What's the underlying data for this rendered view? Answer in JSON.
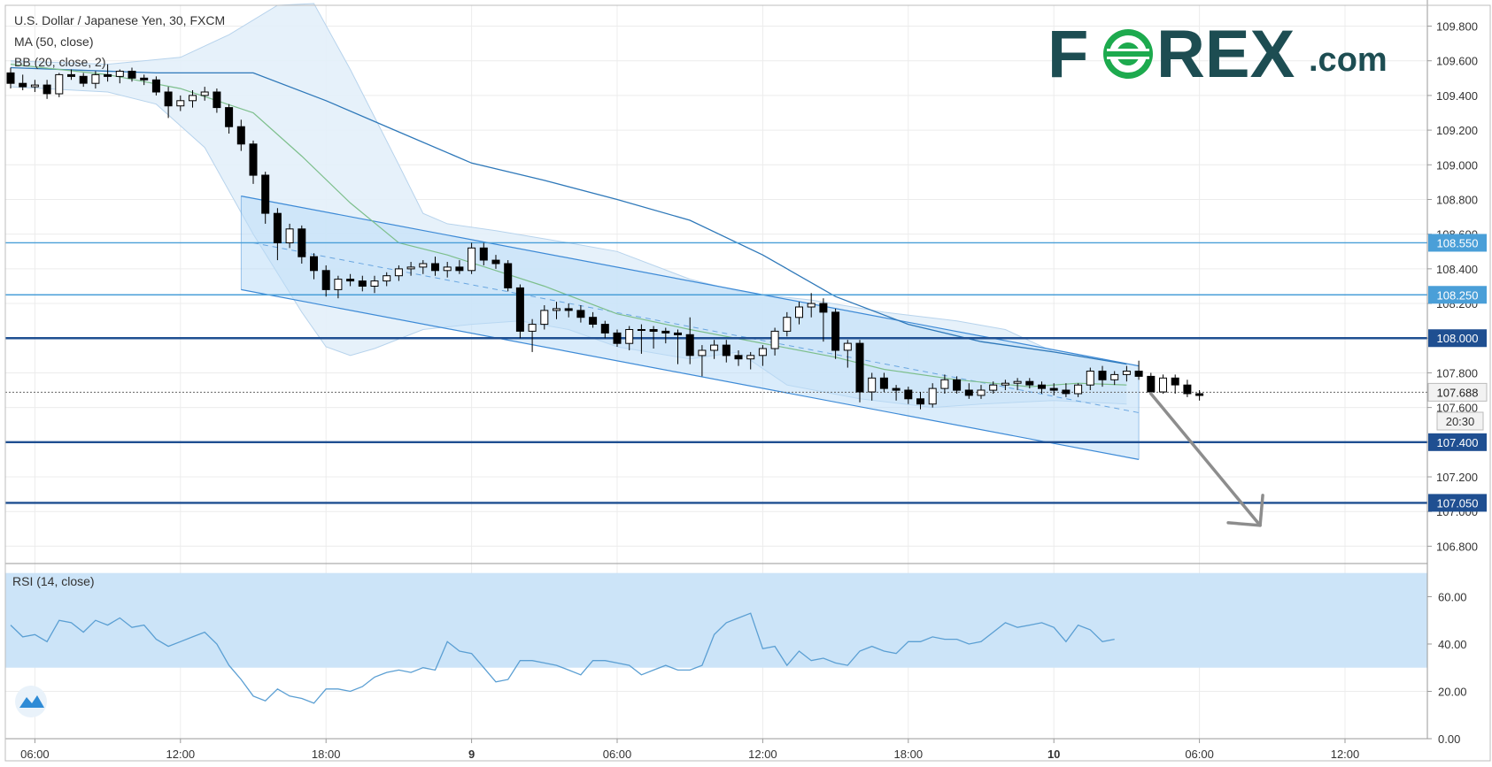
{
  "header": {
    "symbol_line": "U.S. Dollar / Japanese Yen, 30, FXCM",
    "ma_label": "MA (50, close)",
    "bb_label": "BB (20, close, 2)"
  },
  "logo": {
    "brand": "FOREX.com",
    "text_before": "F",
    "text_after": "REX",
    "suffix": ".com",
    "color": "#1d4d52",
    "accent": "#1daa4e"
  },
  "rsi_panel": {
    "label": "RSI (14, close)"
  },
  "badges": {
    "countdown": "20:30"
  },
  "colors": {
    "bg": "#ffffff",
    "grid": "#ececec",
    "channel_fill": "#bcdcf7",
    "channel_line": "#3d8ad6",
    "bb_fill": "#e3effa",
    "bb_line": "#b7d3ec",
    "ma_line": "#2e78b9",
    "bb_mid": "#7dbf8c",
    "rsi_fill": "#cce4f8",
    "rsi_line": "#5b9fd3",
    "hline": "#1f4f91",
    "hline_light": "#4a9fd8",
    "arrow": "#8d8d8d",
    "candle_up": "#ffffff",
    "candle_down": "#000000"
  },
  "chart_data": [
    {
      "type": "candlestick",
      "title": "U.S. Dollar / Japanese Yen, 30, FXCM",
      "ylim": [
        106.7,
        109.92
      ],
      "y_ticks": [
        "106.800",
        "107.000",
        "107.200",
        "107.400",
        "107.600",
        "107.800",
        "108.000",
        "108.200",
        "108.400",
        "108.600",
        "108.800",
        "109.000",
        "109.200",
        "109.400",
        "109.600",
        "109.800"
      ],
      "x_ticks": [
        "06:00",
        "12:00",
        "18:00",
        "9",
        "06:00",
        "12:00",
        "18:00",
        "10",
        "06:00",
        "12:00"
      ],
      "x_tick_index": [
        2,
        14,
        26,
        38,
        50,
        62,
        74,
        86,
        98,
        110
      ],
      "candles": [
        [
          109.53,
          109.56,
          109.44,
          109.47
        ],
        [
          109.47,
          109.52,
          109.43,
          109.45
        ],
        [
          109.45,
          109.49,
          109.42,
          109.46
        ],
        [
          109.46,
          109.49,
          109.38,
          109.41
        ],
        [
          109.41,
          109.53,
          109.39,
          109.52
        ],
        [
          109.52,
          109.55,
          109.49,
          109.51
        ],
        [
          109.51,
          109.53,
          109.45,
          109.47
        ],
        [
          109.47,
          109.54,
          109.44,
          109.52
        ],
        [
          109.52,
          109.58,
          109.48,
          109.51
        ],
        [
          109.51,
          109.55,
          109.47,
          109.54
        ],
        [
          109.54,
          109.56,
          109.48,
          109.5
        ],
        [
          109.5,
          109.52,
          109.46,
          109.49
        ],
        [
          109.49,
          109.51,
          109.4,
          109.42
        ],
        [
          109.42,
          109.45,
          109.27,
          109.34
        ],
        [
          109.34,
          109.4,
          109.31,
          109.37
        ],
        [
          109.37,
          109.43,
          109.33,
          109.4
        ],
        [
          109.4,
          109.45,
          109.37,
          109.42
        ],
        [
          109.42,
          109.44,
          109.3,
          109.33
        ],
        [
          109.33,
          109.35,
          109.18,
          109.22
        ],
        [
          109.22,
          109.26,
          109.08,
          109.12
        ],
        [
          109.12,
          109.14,
          108.89,
          108.94
        ],
        [
          108.94,
          108.96,
          108.66,
          108.72
        ],
        [
          108.72,
          108.75,
          108.45,
          108.55
        ],
        [
          108.55,
          108.66,
          108.52,
          108.63
        ],
        [
          108.63,
          108.65,
          108.43,
          108.47
        ],
        [
          108.47,
          108.49,
          108.34,
          108.39
        ],
        [
          108.39,
          108.42,
          108.24,
          108.28
        ],
        [
          108.28,
          108.36,
          108.23,
          108.34
        ],
        [
          108.34,
          108.37,
          108.3,
          108.33
        ],
        [
          108.33,
          108.36,
          108.27,
          108.3
        ],
        [
          108.3,
          108.36,
          108.26,
          108.33
        ],
        [
          108.33,
          108.38,
          108.3,
          108.36
        ],
        [
          108.36,
          108.42,
          108.33,
          108.4
        ],
        [
          108.4,
          108.44,
          108.36,
          108.41
        ],
        [
          108.41,
          108.45,
          108.37,
          108.43
        ],
        [
          108.43,
          108.47,
          108.36,
          108.39
        ],
        [
          108.39,
          108.44,
          108.35,
          108.41
        ],
        [
          108.41,
          108.45,
          108.37,
          108.39
        ],
        [
          108.39,
          108.55,
          108.37,
          108.52
        ],
        [
          108.52,
          108.55,
          108.42,
          108.45
        ],
        [
          108.45,
          108.48,
          108.4,
          108.43
        ],
        [
          108.43,
          108.45,
          108.27,
          108.29
        ],
        [
          108.29,
          108.31,
          108.0,
          108.04
        ],
        [
          108.04,
          108.11,
          107.92,
          108.08
        ],
        [
          108.08,
          108.19,
          108.05,
          108.16
        ],
        [
          108.16,
          108.21,
          108.11,
          108.17
        ],
        [
          108.17,
          108.2,
          108.12,
          108.16
        ],
        [
          108.16,
          108.19,
          108.09,
          108.12
        ],
        [
          108.12,
          108.15,
          108.06,
          108.08
        ],
        [
          108.08,
          108.1,
          108.0,
          108.03
        ],
        [
          108.03,
          108.05,
          107.95,
          107.97
        ],
        [
          107.97,
          108.07,
          107.93,
          108.05
        ],
        [
          108.05,
          108.08,
          107.91,
          108.05
        ],
        [
          108.05,
          108.07,
          107.94,
          108.04
        ],
        [
          108.04,
          108.06,
          107.97,
          108.03
        ],
        [
          108.03,
          108.05,
          107.85,
          108.02
        ],
        [
          108.02,
          108.12,
          107.85,
          107.9
        ],
        [
          107.9,
          107.96,
          107.78,
          107.93
        ],
        [
          107.93,
          107.99,
          107.88,
          107.96
        ],
        [
          107.96,
          107.99,
          107.86,
          107.9
        ],
        [
          107.9,
          107.93,
          107.84,
          107.88
        ],
        [
          107.88,
          107.92,
          107.82,
          107.9
        ],
        [
          107.9,
          107.96,
          107.84,
          107.94
        ],
        [
          107.94,
          108.06,
          107.9,
          108.04
        ],
        [
          108.04,
          108.15,
          108.01,
          108.12
        ],
        [
          108.12,
          108.21,
          108.08,
          108.18
        ],
        [
          108.18,
          108.26,
          108.12,
          108.2
        ],
        [
          108.2,
          108.23,
          107.98,
          108.15
        ],
        [
          108.15,
          108.17,
          107.88,
          107.93
        ],
        [
          107.93,
          107.99,
          107.83,
          107.97
        ],
        [
          107.97,
          107.99,
          107.63,
          107.69
        ],
        [
          107.69,
          107.8,
          107.64,
          107.77
        ],
        [
          107.77,
          107.8,
          107.69,
          107.71
        ],
        [
          107.71,
          107.73,
          107.64,
          107.7
        ],
        [
          107.7,
          107.72,
          107.62,
          107.65
        ],
        [
          107.65,
          107.69,
          107.59,
          107.62
        ],
        [
          107.62,
          107.74,
          107.6,
          107.71
        ],
        [
          107.71,
          107.79,
          107.68,
          107.76
        ],
        [
          107.76,
          107.78,
          107.68,
          107.7
        ],
        [
          107.7,
          107.74,
          107.65,
          107.67
        ],
        [
          107.67,
          107.73,
          107.65,
          107.7
        ],
        [
          107.7,
          107.75,
          107.68,
          107.73
        ],
        [
          107.73,
          107.76,
          107.7,
          107.74
        ],
        [
          107.74,
          107.77,
          107.7,
          107.75
        ],
        [
          107.75,
          107.77,
          107.71,
          107.73
        ],
        [
          107.73,
          107.75,
          107.68,
          107.71
        ],
        [
          107.71,
          107.74,
          107.67,
          107.7
        ],
        [
          107.7,
          107.74,
          107.66,
          107.68
        ],
        [
          107.68,
          107.74,
          107.66,
          107.73
        ],
        [
          107.73,
          107.83,
          107.7,
          107.81
        ],
        [
          107.81,
          107.84,
          107.72,
          107.76
        ],
        [
          107.76,
          107.81,
          107.73,
          107.79
        ],
        [
          107.79,
          107.84,
          107.75,
          107.81
        ],
        [
          107.81,
          107.87,
          107.76,
          107.78
        ],
        [
          107.78,
          107.8,
          107.67,
          107.69
        ],
        [
          107.69,
          107.79,
          107.68,
          107.77
        ],
        [
          107.77,
          107.79,
          107.68,
          107.73
        ],
        [
          107.73,
          107.76,
          107.66,
          107.68
        ],
        [
          107.68,
          107.7,
          107.64,
          107.67
        ]
      ],
      "ma50": [
        [
          0,
          109.56
        ],
        [
          12,
          109.53
        ],
        [
          20,
          109.53
        ],
        [
          26,
          109.37
        ],
        [
          32,
          109.19
        ],
        [
          38,
          109.01
        ],
        [
          44,
          108.91
        ],
        [
          50,
          108.8
        ],
        [
          56,
          108.68
        ],
        [
          62,
          108.48
        ],
        [
          68,
          108.24
        ],
        [
          74,
          108.08
        ],
        [
          80,
          107.98
        ],
        [
          86,
          107.92
        ],
        [
          92,
          107.85
        ]
      ],
      "bb_mid": [
        [
          0,
          109.58
        ],
        [
          8,
          109.52
        ],
        [
          14,
          109.44
        ],
        [
          20,
          109.3
        ],
        [
          24,
          109.05
        ],
        [
          28,
          108.78
        ],
        [
          32,
          108.55
        ],
        [
          36,
          108.48
        ],
        [
          40,
          108.39
        ],
        [
          44,
          108.3
        ],
        [
          50,
          108.14
        ],
        [
          56,
          108.05
        ],
        [
          62,
          107.97
        ],
        [
          68,
          107.89
        ],
        [
          72,
          107.82
        ],
        [
          78,
          107.76
        ],
        [
          84,
          107.72
        ],
        [
          88,
          107.74
        ],
        [
          92,
          107.73
        ]
      ],
      "bb_upper": [
        [
          0,
          109.6
        ],
        [
          8,
          109.58
        ],
        [
          14,
          109.62
        ],
        [
          18,
          109.75
        ],
        [
          22,
          109.92
        ],
        [
          25,
          109.93
        ],
        [
          28,
          109.55
        ],
        [
          32,
          109.0
        ],
        [
          34,
          108.72
        ],
        [
          36,
          108.66
        ],
        [
          40,
          108.62
        ],
        [
          46,
          108.55
        ],
        [
          50,
          108.5
        ],
        [
          56,
          108.34
        ],
        [
          60,
          108.27
        ],
        [
          62,
          108.25
        ],
        [
          66,
          108.22
        ],
        [
          72,
          108.15
        ],
        [
          78,
          108.1
        ],
        [
          82,
          108.05
        ],
        [
          86,
          107.92
        ],
        [
          90,
          107.88
        ],
        [
          92,
          107.85
        ]
      ],
      "bb_lower": [
        [
          0,
          109.45
        ],
        [
          8,
          109.42
        ],
        [
          12,
          109.35
        ],
        [
          16,
          109.1
        ],
        [
          20,
          108.6
        ],
        [
          24,
          108.15
        ],
        [
          26,
          107.95
        ],
        [
          28,
          107.9
        ],
        [
          30,
          107.94
        ],
        [
          34,
          108.05
        ],
        [
          38,
          108.08
        ],
        [
          42,
          108.1
        ],
        [
          46,
          108.05
        ],
        [
          50,
          107.95
        ],
        [
          56,
          107.88
        ],
        [
          60,
          107.92
        ],
        [
          64,
          107.73
        ],
        [
          70,
          107.65
        ],
        [
          76,
          107.6
        ],
        [
          80,
          107.62
        ],
        [
          86,
          107.64
        ],
        [
          92,
          107.62
        ]
      ],
      "channel": {
        "upper": [
          [
            19,
            108.82
          ],
          [
            93,
            107.84
          ]
        ],
        "lower": [
          [
            19,
            108.28
          ],
          [
            93,
            107.3
          ]
        ],
        "mid": [
          [
            20,
            108.55
          ],
          [
            93,
            107.57
          ]
        ]
      },
      "horizontal_levels": [
        {
          "label": "108.550",
          "value": 108.55,
          "style": "light"
        },
        {
          "label": "108.250",
          "value": 108.25,
          "style": "light"
        },
        {
          "label": "108.000",
          "value": 108.0,
          "style": "dark"
        },
        {
          "label": "107.400",
          "value": 107.4,
          "style": "dark"
        },
        {
          "label": "107.050",
          "value": 107.05,
          "style": "dark"
        }
      ],
      "current_price": {
        "label": "107.688",
        "value": 107.688
      },
      "forecast_arrow": {
        "from": [
          94,
          107.68
        ],
        "to": [
          103,
          106.92
        ]
      }
    },
    {
      "type": "line",
      "title": "RSI (14, close)",
      "ylim": [
        0,
        74
      ],
      "y_ticks": [
        "0.00",
        "20.00",
        "40.00",
        "60.00"
      ],
      "band": [
        30,
        70
      ],
      "values": [
        48,
        43,
        44,
        41,
        50,
        49,
        45,
        50,
        48,
        51,
        47,
        48,
        42,
        39,
        41,
        43,
        45,
        40,
        31,
        25,
        18,
        16,
        21,
        18,
        17,
        15,
        21,
        21,
        20,
        22,
        26,
        28,
        29,
        28,
        30,
        29,
        41,
        37,
        36,
        30,
        24,
        25,
        33,
        33,
        32,
        31,
        29,
        27,
        33,
        33,
        32,
        31,
        27,
        29,
        31,
        29,
        29,
        31,
        44,
        49,
        51,
        53,
        38,
        39,
        31,
        37,
        33,
        34,
        32,
        31,
        37,
        39,
        37,
        36,
        41,
        41,
        43,
        42,
        42,
        40,
        41,
        45,
        49,
        47,
        48,
        49,
        47,
        41,
        48,
        46,
        41,
        42
      ]
    }
  ]
}
